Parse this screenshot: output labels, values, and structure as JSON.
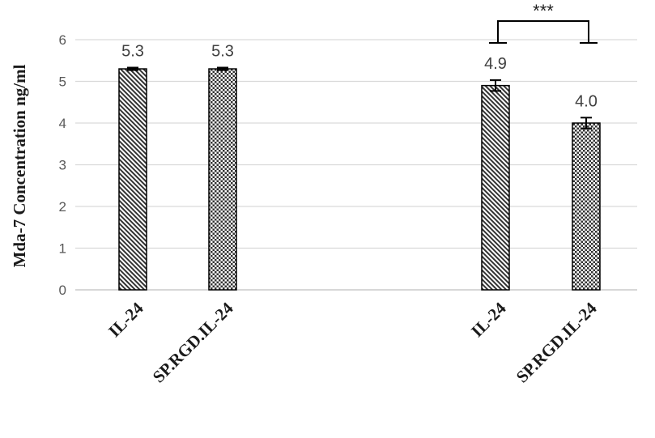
{
  "chart_data": {
    "type": "bar",
    "ylabel": "Mda-7 Concentration ng/ml",
    "ylim": [
      0,
      6
    ],
    "yticks": [
      0,
      1,
      2,
      3,
      4,
      5,
      6
    ],
    "grid": true,
    "categories": [
      "IL-24",
      "SP.RGD.IL-24",
      "IL-24",
      "SP.RGD.IL-24"
    ],
    "values": [
      5.3,
      5.3,
      4.9,
      4.0
    ],
    "errors": [
      0.03,
      0.03,
      0.13,
      0.13
    ],
    "data_labels": [
      "5.3",
      "5.3",
      "4.9",
      "4.0"
    ],
    "patterns": [
      "diagonal-hatch",
      "checker",
      "diagonal-hatch",
      "checker"
    ],
    "significance": {
      "between": [
        2,
        3
      ],
      "label": "***"
    }
  }
}
